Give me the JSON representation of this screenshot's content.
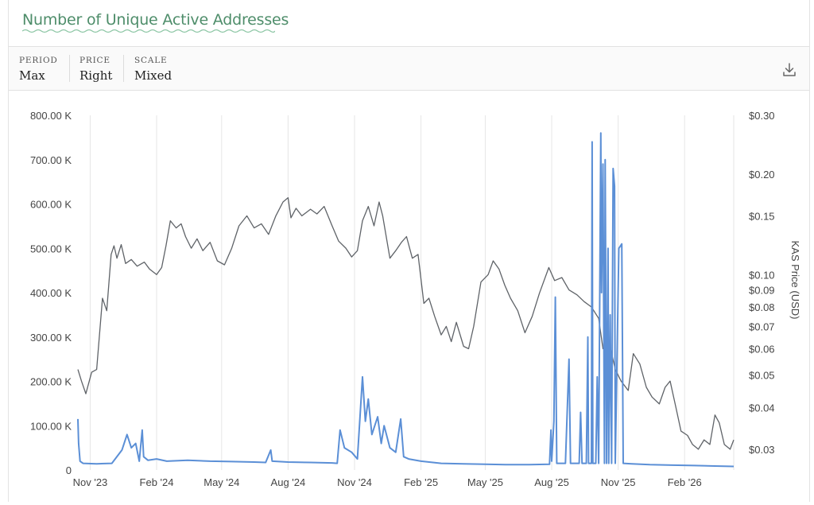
{
  "title": "Number of Unique Active Addresses",
  "controls": {
    "period": {
      "label": "PERIOD",
      "value": "Max"
    },
    "price": {
      "label": "PRICE",
      "value": "Right"
    },
    "scale": {
      "label": "SCALE",
      "value": "Mixed"
    }
  },
  "download_icon": "download-icon",
  "colors": {
    "title": "#4e8d6a",
    "addresses": "#5b8fd6",
    "price": "#5f6368"
  },
  "chart_data": {
    "type": "line",
    "grid": "vertical",
    "y_left": {
      "range": [
        0,
        800000
      ],
      "tick_values": [
        0,
        100000,
        200000,
        300000,
        400000,
        500000,
        600000,
        700000,
        800000
      ],
      "ticks": [
        "0",
        "100.00 K",
        "200.00 K",
        "300.00 K",
        "400.00 K",
        "500.00 K",
        "600.00 K",
        "700.00 K",
        "800.00 K"
      ]
    },
    "y_right": {
      "label": "KAS Price (USD)",
      "scale": "log",
      "range": [
        0.026,
        0.3
      ],
      "tick_values": [
        0.3,
        0.2,
        0.15,
        0.1,
        0.09,
        0.08,
        0.07,
        0.06,
        0.05,
        0.04,
        0.03
      ],
      "ticks": [
        "$0.30",
        "$0.20",
        "$0.15",
        "$0.10",
        "$0.09",
        "$0.08",
        "$0.07",
        "$0.06",
        "$0.05",
        "$0.04",
        "$0.03"
      ]
    },
    "x_ticks": [
      "Nov '23",
      "Feb '24",
      "May '24",
      "Aug '24",
      "Nov '24",
      "Feb '25",
      "May '25",
      "Aug '25",
      "Nov '25",
      "Feb '26"
    ],
    "x_tick_dates": [
      "2023-11-01",
      "2024-02-01",
      "2024-05-01",
      "2024-08-01",
      "2024-11-01",
      "2025-02-01",
      "2025-05-01",
      "2025-08-01",
      "2025-11-01",
      "2026-02-01"
    ],
    "x_range": [
      "2023-10-15",
      "2026-04-10"
    ],
    "series": [
      {
        "name": "",
        "points": [
          [
            "2023-10-15",
            115000
          ],
          [
            "2023-10-16",
            60000
          ],
          [
            "2023-10-18",
            20000
          ],
          [
            "2023-10-22",
            15000
          ],
          [
            "2023-11-10",
            14000
          ],
          [
            "2023-12-01",
            15000
          ],
          [
            "2023-12-15",
            45000
          ],
          [
            "2023-12-22",
            80000
          ],
          [
            "2023-12-28",
            50000
          ],
          [
            "2024-01-03",
            60000
          ],
          [
            "2024-01-08",
            20000
          ],
          [
            "2024-01-12",
            90000
          ],
          [
            "2024-01-14",
            30000
          ],
          [
            "2024-01-20",
            22000
          ],
          [
            "2024-02-01",
            25000
          ],
          [
            "2024-02-15",
            20000
          ],
          [
            "2024-03-15",
            22000
          ],
          [
            "2024-04-15",
            20000
          ],
          [
            "2024-05-15",
            19000
          ],
          [
            "2024-06-15",
            18000
          ],
          [
            "2024-07-01",
            17000
          ],
          [
            "2024-07-08",
            45000
          ],
          [
            "2024-07-10",
            20000
          ],
          [
            "2024-08-01",
            18000
          ],
          [
            "2024-09-01",
            17000
          ],
          [
            "2024-10-01",
            16000
          ],
          [
            "2024-10-08",
            15000
          ],
          [
            "2024-10-12",
            90000
          ],
          [
            "2024-10-18",
            50000
          ],
          [
            "2024-10-28",
            40000
          ],
          [
            "2024-11-05",
            25000
          ],
          [
            "2024-11-12",
            210000
          ],
          [
            "2024-11-16",
            110000
          ],
          [
            "2024-11-20",
            160000
          ],
          [
            "2024-11-25",
            80000
          ],
          [
            "2024-12-03",
            120000
          ],
          [
            "2024-12-08",
            60000
          ],
          [
            "2024-12-12",
            100000
          ],
          [
            "2024-12-20",
            50000
          ],
          [
            "2024-12-28",
            40000
          ],
          [
            "2025-01-04",
            115000
          ],
          [
            "2025-01-08",
            30000
          ],
          [
            "2025-01-15",
            25000
          ],
          [
            "2025-02-01",
            20000
          ],
          [
            "2025-03-01",
            15000
          ],
          [
            "2025-04-01",
            14000
          ],
          [
            "2025-05-01",
            13000
          ],
          [
            "2025-06-01",
            12000
          ],
          [
            "2025-07-01",
            12000
          ],
          [
            "2025-07-29",
            13000
          ],
          [
            "2025-07-31",
            90000
          ],
          [
            "2025-08-01",
            20000
          ],
          [
            "2025-08-04",
            110000
          ],
          [
            "2025-08-06",
            390000
          ],
          [
            "2025-08-08",
            15000
          ],
          [
            "2025-08-20",
            15000
          ],
          [
            "2025-08-25",
            250000
          ],
          [
            "2025-08-27",
            15000
          ],
          [
            "2025-09-08",
            15000
          ],
          [
            "2025-09-10",
            130000
          ],
          [
            "2025-09-12",
            15000
          ],
          [
            "2025-09-18",
            15000
          ],
          [
            "2025-09-20",
            300000
          ],
          [
            "2025-09-21",
            15000
          ],
          [
            "2025-09-25",
            15000
          ],
          [
            "2025-09-26",
            740000
          ],
          [
            "2025-09-27",
            15000
          ],
          [
            "2025-10-01",
            15000
          ],
          [
            "2025-10-03",
            210000
          ],
          [
            "2025-10-05",
            15000
          ],
          [
            "2025-10-08",
            760000
          ],
          [
            "2025-10-09",
            400000
          ],
          [
            "2025-10-11",
            690000
          ],
          [
            "2025-10-13",
            15000
          ],
          [
            "2025-10-14",
            700000
          ],
          [
            "2025-10-16",
            15000
          ],
          [
            "2025-10-18",
            500000
          ],
          [
            "2025-10-19",
            15000
          ],
          [
            "2025-10-21",
            350000
          ],
          [
            "2025-10-23",
            15000
          ],
          [
            "2025-10-25",
            680000
          ],
          [
            "2025-10-27",
            640000
          ],
          [
            "2025-10-28",
            15000
          ],
          [
            "2025-11-02",
            500000
          ],
          [
            "2025-11-06",
            510000
          ],
          [
            "2025-11-08",
            15000
          ],
          [
            "2025-11-20",
            14000
          ],
          [
            "2025-12-15",
            12000
          ],
          [
            "2026-01-15",
            11000
          ],
          [
            "2026-02-15",
            10000
          ],
          [
            "2026-03-15",
            9000
          ],
          [
            "2026-04-10",
            8000
          ]
        ]
      },
      {
        "name": "KAS Price (USD)",
        "points": [
          [
            "2023-10-15",
            0.052
          ],
          [
            "2023-10-20",
            0.048
          ],
          [
            "2023-10-26",
            0.044
          ],
          [
            "2023-11-03",
            0.051
          ],
          [
            "2023-11-10",
            0.052
          ],
          [
            "2023-11-18",
            0.085
          ],
          [
            "2023-11-24",
            0.078
          ],
          [
            "2023-11-30",
            0.115
          ],
          [
            "2023-12-04",
            0.122
          ],
          [
            "2023-12-08",
            0.112
          ],
          [
            "2023-12-14",
            0.123
          ],
          [
            "2023-12-20",
            0.108
          ],
          [
            "2023-12-28",
            0.111
          ],
          [
            "2024-01-05",
            0.106
          ],
          [
            "2024-01-15",
            0.109
          ],
          [
            "2024-01-22",
            0.104
          ],
          [
            "2024-02-01",
            0.1
          ],
          [
            "2024-02-08",
            0.105
          ],
          [
            "2024-02-14",
            0.122
          ],
          [
            "2024-02-20",
            0.145
          ],
          [
            "2024-02-28",
            0.138
          ],
          [
            "2024-03-06",
            0.142
          ],
          [
            "2024-03-12",
            0.13
          ],
          [
            "2024-03-20",
            0.12
          ],
          [
            "2024-03-28",
            0.128
          ],
          [
            "2024-04-05",
            0.118
          ],
          [
            "2024-04-15",
            0.125
          ],
          [
            "2024-04-25",
            0.11
          ],
          [
            "2024-05-05",
            0.107
          ],
          [
            "2024-05-15",
            0.12
          ],
          [
            "2024-05-25",
            0.14
          ],
          [
            "2024-06-05",
            0.15
          ],
          [
            "2024-06-15",
            0.138
          ],
          [
            "2024-06-25",
            0.142
          ],
          [
            "2024-07-05",
            0.132
          ],
          [
            "2024-07-15",
            0.15
          ],
          [
            "2024-07-25",
            0.165
          ],
          [
            "2024-08-01",
            0.17
          ],
          [
            "2024-08-05",
            0.148
          ],
          [
            "2024-08-12",
            0.158
          ],
          [
            "2024-08-20",
            0.15
          ],
          [
            "2024-09-01",
            0.157
          ],
          [
            "2024-09-10",
            0.152
          ],
          [
            "2024-09-20",
            0.16
          ],
          [
            "2024-10-01",
            0.14
          ],
          [
            "2024-10-10",
            0.126
          ],
          [
            "2024-10-20",
            0.12
          ],
          [
            "2024-10-28",
            0.113
          ],
          [
            "2024-11-05",
            0.118
          ],
          [
            "2024-11-12",
            0.145
          ],
          [
            "2024-11-20",
            0.16
          ],
          [
            "2024-11-28",
            0.14
          ],
          [
            "2024-12-05",
            0.165
          ],
          [
            "2024-12-10",
            0.15
          ],
          [
            "2024-12-20",
            0.112
          ],
          [
            "2024-12-28",
            0.118
          ],
          [
            "2025-01-05",
            0.125
          ],
          [
            "2025-01-12",
            0.13
          ],
          [
            "2025-01-20",
            0.112
          ],
          [
            "2025-01-28",
            0.115
          ],
          [
            "2025-02-05",
            0.082
          ],
          [
            "2025-02-12",
            0.085
          ],
          [
            "2025-02-20",
            0.075
          ],
          [
            "2025-03-01",
            0.066
          ],
          [
            "2025-03-08",
            0.07
          ],
          [
            "2025-03-15",
            0.063
          ],
          [
            "2025-03-22",
            0.072
          ],
          [
            "2025-04-01",
            0.061
          ],
          [
            "2025-04-08",
            0.06
          ],
          [
            "2025-04-15",
            0.07
          ],
          [
            "2025-04-25",
            0.095
          ],
          [
            "2025-05-05",
            0.1
          ],
          [
            "2025-05-12",
            0.11
          ],
          [
            "2025-05-20",
            0.104
          ],
          [
            "2025-05-28",
            0.093
          ],
          [
            "2025-06-05",
            0.085
          ],
          [
            "2025-06-15",
            0.078
          ],
          [
            "2025-06-25",
            0.067
          ],
          [
            "2025-07-05",
            0.075
          ],
          [
            "2025-07-15",
            0.088
          ],
          [
            "2025-07-28",
            0.105
          ],
          [
            "2025-08-05",
            0.096
          ],
          [
            "2025-08-15",
            0.098
          ],
          [
            "2025-08-25",
            0.09
          ],
          [
            "2025-09-05",
            0.087
          ],
          [
            "2025-09-15",
            0.083
          ],
          [
            "2025-09-25",
            0.08
          ],
          [
            "2025-10-05",
            0.074
          ],
          [
            "2025-10-11",
            0.06
          ],
          [
            "2025-10-20",
            0.062
          ],
          [
            "2025-10-28",
            0.052
          ],
          [
            "2025-11-05",
            0.048
          ],
          [
            "2025-11-15",
            0.045
          ],
          [
            "2025-11-22",
            0.058
          ],
          [
            "2025-12-01",
            0.054
          ],
          [
            "2025-12-10",
            0.046
          ],
          [
            "2025-12-18",
            0.043
          ],
          [
            "2025-12-28",
            0.041
          ],
          [
            "2026-01-05",
            0.046
          ],
          [
            "2026-01-12",
            0.048
          ],
          [
            "2026-01-20",
            0.04
          ],
          [
            "2026-01-27",
            0.034
          ],
          [
            "2026-02-05",
            0.033
          ],
          [
            "2026-02-12",
            0.031
          ],
          [
            "2026-02-20",
            0.03
          ],
          [
            "2026-02-28",
            0.032
          ],
          [
            "2026-03-08",
            0.031
          ],
          [
            "2026-03-15",
            0.038
          ],
          [
            "2026-03-21",
            0.036
          ],
          [
            "2026-03-28",
            0.031
          ],
          [
            "2026-04-05",
            0.03
          ],
          [
            "2026-04-10",
            0.032
          ]
        ]
      }
    ]
  }
}
